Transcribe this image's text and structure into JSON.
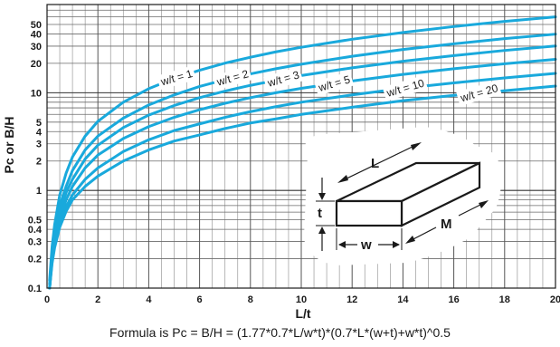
{
  "chart_data": {
    "type": "line",
    "xlabel": "L/t",
    "ylabel": "Pc or B/H",
    "xlim": [
      0,
      20
    ],
    "ylim": [
      0.1,
      80
    ],
    "yscale": "log",
    "grid": true,
    "x_ticks": [
      0,
      2,
      4,
      6,
      8,
      10,
      12,
      14,
      16,
      18,
      20
    ],
    "y_ticks": [
      0.1,
      0.2,
      0.3,
      0.4,
      0.5,
      1,
      2,
      3,
      4,
      5,
      10,
      20,
      30,
      40,
      50
    ],
    "x": [
      0.1,
      0.2,
      0.3,
      0.5,
      0.75,
      1,
      1.5,
      2,
      3,
      4,
      5,
      6,
      7,
      8,
      9,
      10,
      12,
      14,
      16,
      18,
      20
    ],
    "series": [
      {
        "name": "w/t = 1",
        "values": [
          0.12,
          0.27,
          0.45,
          0.9,
          1.5,
          2.2,
          3.6,
          5.1,
          8.0,
          11.0,
          14.0,
          17.0,
          20.1,
          23.1,
          26.2,
          29.2,
          35.3,
          41.4,
          47.6,
          53.7,
          59.8
        ]
      },
      {
        "name": "w/t = 2",
        "values": [
          0.11,
          0.23,
          0.37,
          0.7,
          1.1,
          1.6,
          2.6,
          3.6,
          5.5,
          7.5,
          9.5,
          11.6,
          13.6,
          15.6,
          17.6,
          19.6,
          23.6,
          27.7,
          31.7,
          35.8,
          39.8
        ]
      },
      {
        "name": "w/t = 3",
        "values": [
          0.1,
          0.21,
          0.33,
          0.6,
          0.95,
          1.3,
          2.1,
          2.9,
          4.4,
          5.9,
          7.4,
          8.9,
          10.4,
          11.9,
          13.4,
          15.0,
          18.0,
          21.0,
          24.0,
          27.1,
          30.1
        ]
      },
      {
        "name": "w/t = 5",
        "values": [
          0.1,
          0.2,
          0.3,
          0.5,
          0.8,
          1.1,
          1.7,
          2.3,
          3.4,
          4.5,
          5.6,
          6.7,
          7.8,
          8.9,
          10.0,
          11.1,
          13.2,
          15.4,
          17.6,
          19.8,
          22.0
        ]
      },
      {
        "name": "w/t = 10",
        "values": [
          0.1,
          0.19,
          0.28,
          0.46,
          0.68,
          0.9,
          1.3,
          1.7,
          2.5,
          3.3,
          4.1,
          4.8,
          5.6,
          6.4,
          7.2,
          8.0,
          9.5,
          11.1,
          12.6,
          14.2,
          15.8
        ]
      },
      {
        "name": "w/t = 20",
        "values": [
          0.09,
          0.18,
          0.26,
          0.42,
          0.61,
          0.8,
          1.1,
          1.4,
          2.0,
          2.6,
          3.2,
          3.7,
          4.3,
          4.9,
          5.4,
          6.0,
          7.1,
          8.3,
          9.4,
          10.5,
          11.7
        ]
      }
    ],
    "line_color": "#19a9dc",
    "inset": {
      "description_labels": {
        "length": "L",
        "thickness": "t",
        "width": "w",
        "magnetization": "M"
      }
    }
  },
  "formula": "Formula is Pc = B/H = (1.77*0.7*L/w*t)*(0.7*L*(w+t)+w*t)^0.5"
}
